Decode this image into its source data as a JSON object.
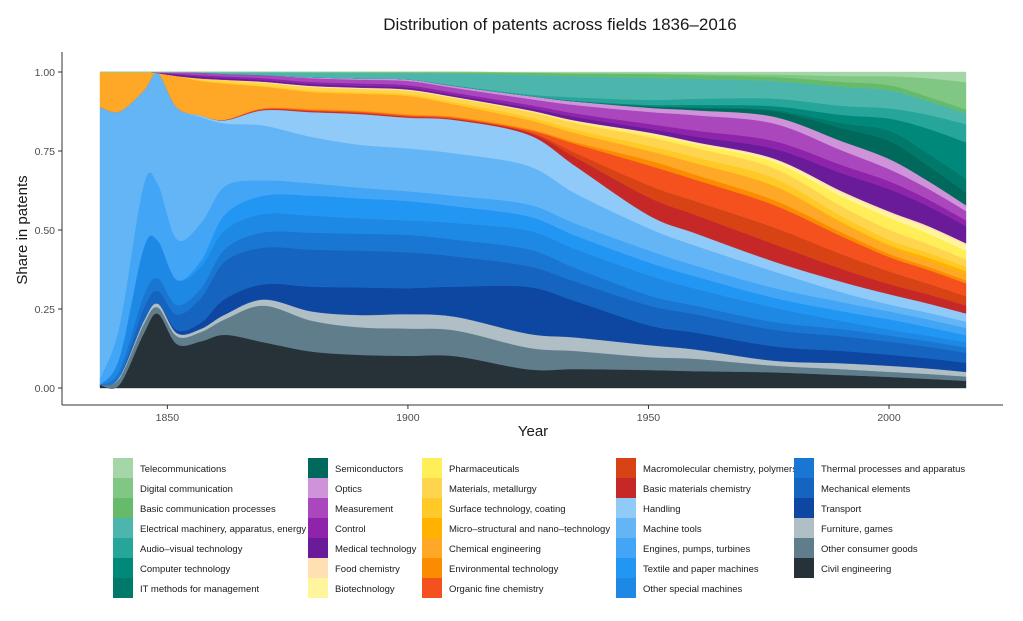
{
  "chart_data": {
    "type": "area",
    "stacked": true,
    "normalized": true,
    "title": "Distribution of patents across fields 1836–2016",
    "xlabel": "Year",
    "ylabel": "Share in patents",
    "xlim": [
      1836,
      2016
    ],
    "ylim": [
      0,
      1
    ],
    "x_ticks": [
      1850,
      1900,
      1950,
      2000
    ],
    "y_ticks": [
      0,
      0.25,
      0.5,
      0.75,
      1
    ],
    "y_tick_labels": [
      "0.00",
      "0.25",
      "0.50",
      "0.75",
      "1.00"
    ],
    "grid": false,
    "legend_position": "bottom",
    "x": [
      1836,
      1840,
      1845,
      1848,
      1852,
      1857,
      1862,
      1870,
      1880,
      1890,
      1900,
      1910,
      1925,
      1935,
      1950,
      1960,
      1976,
      1990,
      2000,
      2008,
      2016
    ],
    "series": [
      {
        "name": "Telecommunications",
        "color": "#a5d6a7",
        "values": [
          0,
          0,
          0,
          0,
          0,
          0,
          0,
          0,
          0,
          0,
          0,
          0,
          0.002,
          0.004,
          0.004,
          0.006,
          0.008,
          0.012,
          0.013,
          0.02,
          0.035
        ]
      },
      {
        "name": "Digital communication",
        "color": "#81c784",
        "values": [
          0,
          0,
          0,
          0,
          0,
          0,
          0,
          0,
          0,
          0,
          0,
          0,
          0,
          0,
          0.002,
          0.004,
          0.008,
          0.018,
          0.028,
          0.06,
          0.095
        ]
      },
      {
        "name": "Basic communication processes",
        "color": "#66bb6a",
        "values": [
          0,
          0,
          0,
          0,
          0,
          0,
          0,
          0,
          0.002,
          0.003,
          0.004,
          0.005,
          0.008,
          0.01,
          0.012,
          0.012,
          0.013,
          0.015,
          0.016,
          0.014,
          0.013
        ]
      },
      {
        "name": "Electrical machinery, apparatus, energy",
        "color": "#4db6ac",
        "values": [
          0,
          0,
          0,
          0,
          0,
          0.002,
          0.006,
          0.01,
          0.015,
          0.018,
          0.02,
          0.04,
          0.065,
          0.07,
          0.07,
          0.065,
          0.057,
          0.058,
          0.057,
          0.045,
          0.038
        ]
      },
      {
        "name": "Audio–visual technology",
        "color": "#26a69a",
        "values": [
          0,
          0,
          0,
          0,
          0,
          0,
          0,
          0,
          0,
          0,
          0,
          0.002,
          0.005,
          0.012,
          0.016,
          0.02,
          0.025,
          0.028,
          0.032,
          0.045,
          0.063
        ]
      },
      {
        "name": "Computer technology",
        "color": "#00897b",
        "values": [
          0,
          0,
          0,
          0,
          0,
          0,
          0,
          0,
          0,
          0,
          0,
          0,
          0,
          0.002,
          0.004,
          0.008,
          0.012,
          0.025,
          0.038,
          0.08,
          0.127
        ]
      },
      {
        "name": "IT methods for management",
        "color": "#00796b",
        "values": [
          0,
          0,
          0,
          0,
          0,
          0,
          0,
          0,
          0,
          0,
          0,
          0,
          0,
          0,
          0.001,
          0.002,
          0.004,
          0.015,
          0.032,
          0.04,
          0.047
        ]
      },
      {
        "name": "Semiconductors",
        "color": "#00695c",
        "values": [
          0,
          0,
          0,
          0,
          0,
          0,
          0,
          0,
          0,
          0,
          0,
          0,
          0,
          0,
          0.004,
          0.008,
          0.018,
          0.04,
          0.057,
          0.05,
          0.045
        ]
      },
      {
        "name": "Optics",
        "color": "#ce93d8",
        "values": [
          0,
          0,
          0,
          0,
          0,
          0,
          0,
          0,
          0.003,
          0.004,
          0.005,
          0.006,
          0.01,
          0.012,
          0.013,
          0.016,
          0.022,
          0.028,
          0.032,
          0.025,
          0.02
        ]
      },
      {
        "name": "Measurement",
        "color": "#ab47bc",
        "values": [
          0,
          0,
          0,
          0.002,
          0.005,
          0.008,
          0.008,
          0.01,
          0.012,
          0.012,
          0.014,
          0.016,
          0.02,
          0.028,
          0.038,
          0.05,
          0.057,
          0.045,
          0.038,
          0.035,
          0.032
        ]
      },
      {
        "name": "Control",
        "color": "#8e24aa",
        "values": [
          0,
          0,
          0,
          0,
          0.003,
          0.005,
          0.005,
          0.006,
          0.007,
          0.008,
          0.008,
          0.008,
          0.01,
          0.012,
          0.015,
          0.02,
          0.025,
          0.025,
          0.025,
          0.022,
          0.02
        ]
      },
      {
        "name": "Medical technology",
        "color": "#6a1b9a",
        "values": [
          0,
          0,
          0,
          0.002,
          0.005,
          0.006,
          0.006,
          0.006,
          0.006,
          0.006,
          0.006,
          0.006,
          0.008,
          0.012,
          0.012,
          0.018,
          0.032,
          0.055,
          0.07,
          0.065,
          0.06
        ]
      },
      {
        "name": "Food chemistry",
        "color": "#ffe0b2",
        "values": [
          0,
          0,
          0,
          0,
          0,
          0,
          0,
          0.002,
          0.003,
          0.003,
          0.003,
          0.003,
          0.003,
          0.004,
          0.004,
          0.004,
          0.005,
          0.006,
          0.006,
          0.006,
          0.006
        ]
      },
      {
        "name": "Biotechnology",
        "color": "#fff59d",
        "values": [
          0,
          0,
          0,
          0,
          0,
          0,
          0,
          0,
          0,
          0,
          0,
          0,
          0,
          0,
          0.002,
          0.003,
          0.006,
          0.01,
          0.013,
          0.018,
          0.02
        ]
      },
      {
        "name": "Pharmaceuticals",
        "color": "#ffee58",
        "values": [
          0,
          0,
          0,
          0,
          0,
          0,
          0,
          0,
          0,
          0,
          0,
          0,
          0.002,
          0.004,
          0.008,
          0.012,
          0.02,
          0.03,
          0.038,
          0.035,
          0.03
        ]
      },
      {
        "name": "Materials, metallurgy",
        "color": "#ffd54f",
        "values": [
          0,
          0,
          0,
          0,
          0,
          0.005,
          0.008,
          0.01,
          0.012,
          0.012,
          0.012,
          0.014,
          0.018,
          0.022,
          0.028,
          0.03,
          0.032,
          0.03,
          0.032,
          0.028,
          0.025
        ]
      },
      {
        "name": "Surface technology, coating",
        "color": "#ffca28",
        "values": [
          0,
          0,
          0,
          0,
          0,
          0.003,
          0.004,
          0.004,
          0.005,
          0.005,
          0.006,
          0.008,
          0.01,
          0.012,
          0.016,
          0.02,
          0.025,
          0.018,
          0.016,
          0.016,
          0.016
        ]
      },
      {
        "name": "Micro–structural and nano–technology",
        "color": "#ffb300",
        "values": [
          0,
          0,
          0,
          0,
          0,
          0,
          0,
          0,
          0,
          0,
          0,
          0,
          0,
          0,
          0,
          0,
          0.002,
          0.004,
          0.006,
          0.01,
          0.012
        ]
      },
      {
        "name": "Chemical engineering",
        "color": "#ffa726",
        "values": [
          0.11,
          0.125,
          0.06,
          0.0,
          0.1,
          0.11,
          0.115,
          0.07,
          0.055,
          0.055,
          0.06,
          0.04,
          0.03,
          0.03,
          0.03,
          0.038,
          0.045,
          0.028,
          0.022,
          0.02,
          0.02
        ]
      },
      {
        "name": "Environmental technology",
        "color": "#fb8c00",
        "values": [
          0,
          0,
          0,
          0,
          0,
          0,
          0,
          0.002,
          0.003,
          0.003,
          0.003,
          0.003,
          0.004,
          0.006,
          0.016,
          0.016,
          0.016,
          0.012,
          0.01,
          0.01,
          0.01
        ]
      },
      {
        "name": "Organic fine chemistry",
        "color": "#f4511e",
        "values": [
          0,
          0,
          0,
          0,
          0,
          0,
          0,
          0.002,
          0.003,
          0.004,
          0.004,
          0.004,
          0.006,
          0.03,
          0.063,
          0.07,
          0.073,
          0.055,
          0.045,
          0.045,
          0.045
        ]
      },
      {
        "name": "Macromolecular chemistry, polymers",
        "color": "#d84315",
        "values": [
          0,
          0,
          0,
          0,
          0,
          0,
          0,
          0,
          0,
          0,
          0,
          0,
          0.002,
          0.015,
          0.038,
          0.045,
          0.054,
          0.045,
          0.04,
          0.035,
          0.032
        ]
      },
      {
        "name": "Basic materials chemistry",
        "color": "#c62828",
        "values": [
          0,
          0,
          0,
          0,
          0,
          0,
          0.002,
          0.003,
          0.004,
          0.004,
          0.004,
          0.004,
          0.008,
          0.03,
          0.057,
          0.06,
          0.057,
          0.04,
          0.032,
          0.03,
          0.028
        ]
      },
      {
        "name": "Handling",
        "color": "#90caf9",
        "values": [
          0,
          0,
          0,
          0,
          0,
          0.005,
          0.01,
          0.05,
          0.08,
          0.1,
          0.1,
          0.11,
          0.105,
          0.09,
          0.041,
          0.04,
          0.032,
          0.032,
          0.032,
          0.03,
          0.028
        ]
      },
      {
        "name": "Machine tools",
        "color": "#64b5f6",
        "values": [
          0.86,
          0.68,
          0.3,
          0.35,
          0.42,
          0.34,
          0.2,
          0.18,
          0.15,
          0.14,
          0.14,
          0.14,
          0.13,
          0.1,
          0.07,
          0.065,
          0.054,
          0.03,
          0.022,
          0.022,
          0.022
        ]
      },
      {
        "name": "Engines, pumps, turbines",
        "color": "#42a5f5",
        "values": [
          0.02,
          0.1,
          0.2,
          0.18,
          0.13,
          0.12,
          0.09,
          0.05,
          0.04,
          0.035,
          0.032,
          0.035,
          0.04,
          0.04,
          0.038,
          0.035,
          0.032,
          0.028,
          0.025,
          0.025,
          0.025
        ]
      },
      {
        "name": "Textile and paper machines",
        "color": "#2196f3",
        "values": [
          0,
          0,
          0,
          0,
          0,
          0.02,
          0.05,
          0.06,
          0.065,
          0.065,
          0.063,
          0.055,
          0.048,
          0.045,
          0.041,
          0.04,
          0.032,
          0.03,
          0.032,
          0.028,
          0.025
        ]
      },
      {
        "name": "Other special machines",
        "color": "#1e88e5",
        "values": [
          0,
          0.04,
          0.15,
          0.12,
          0.08,
          0.07,
          0.06,
          0.06,
          0.055,
          0.05,
          0.047,
          0.055,
          0.063,
          0.063,
          0.063,
          0.055,
          0.047,
          0.025,
          0.019,
          0.018,
          0.018
        ]
      },
      {
        "name": "Thermal processes and apparatus",
        "color": "#1976d2",
        "values": [
          0,
          0.02,
          0.04,
          0.04,
          0.03,
          0.03,
          0.04,
          0.05,
          0.055,
          0.055,
          0.057,
          0.055,
          0.057,
          0.045,
          0.032,
          0.028,
          0.025,
          0.022,
          0.019,
          0.018,
          0.018
        ]
      },
      {
        "name": "Mechanical elements",
        "color": "#1565c0",
        "values": [
          0,
          0,
          0.04,
          0.04,
          0.05,
          0.08,
          0.12,
          0.12,
          0.12,
          0.12,
          0.117,
          0.1,
          0.07,
          0.065,
          0.063,
          0.06,
          0.054,
          0.045,
          0.041,
          0.038,
          0.035
        ]
      },
      {
        "name": "Transport",
        "color": "#0d47a1",
        "values": [
          0,
          0,
          0,
          0,
          0.01,
          0.02,
          0.05,
          0.05,
          0.08,
          0.09,
          0.085,
          0.1,
          0.158,
          0.12,
          0.063,
          0.055,
          0.047,
          0.038,
          0.035,
          0.033,
          0.032
        ]
      },
      {
        "name": "Furniture, games",
        "color": "#b0bec5",
        "values": [
          0,
          0.005,
          0.01,
          0.012,
          0.01,
          0.01,
          0.015,
          0.02,
          0.03,
          0.04,
          0.047,
          0.045,
          0.047,
          0.045,
          0.038,
          0.03,
          0.016,
          0.018,
          0.019,
          0.018,
          0.016
        ]
      },
      {
        "name": "Other consumer goods",
        "color": "#607d8b",
        "values": [
          0,
          0.02,
          0.03,
          0.02,
          0.025,
          0.03,
          0.05,
          0.12,
          0.1,
          0.09,
          0.089,
          0.085,
          0.073,
          0.06,
          0.041,
          0.04,
          0.022,
          0.018,
          0.016,
          0.016,
          0.015
        ]
      },
      {
        "name": "Civil engineering",
        "color": "#263238",
        "values": [
          0.01,
          0.01,
          0.17,
          0.236,
          0.14,
          0.15,
          0.17,
          0.15,
          0.118,
          0.108,
          0.105,
          0.105,
          0.063,
          0.063,
          0.057,
          0.055,
          0.051,
          0.04,
          0.035,
          0.03,
          0.025
        ]
      }
    ]
  }
}
